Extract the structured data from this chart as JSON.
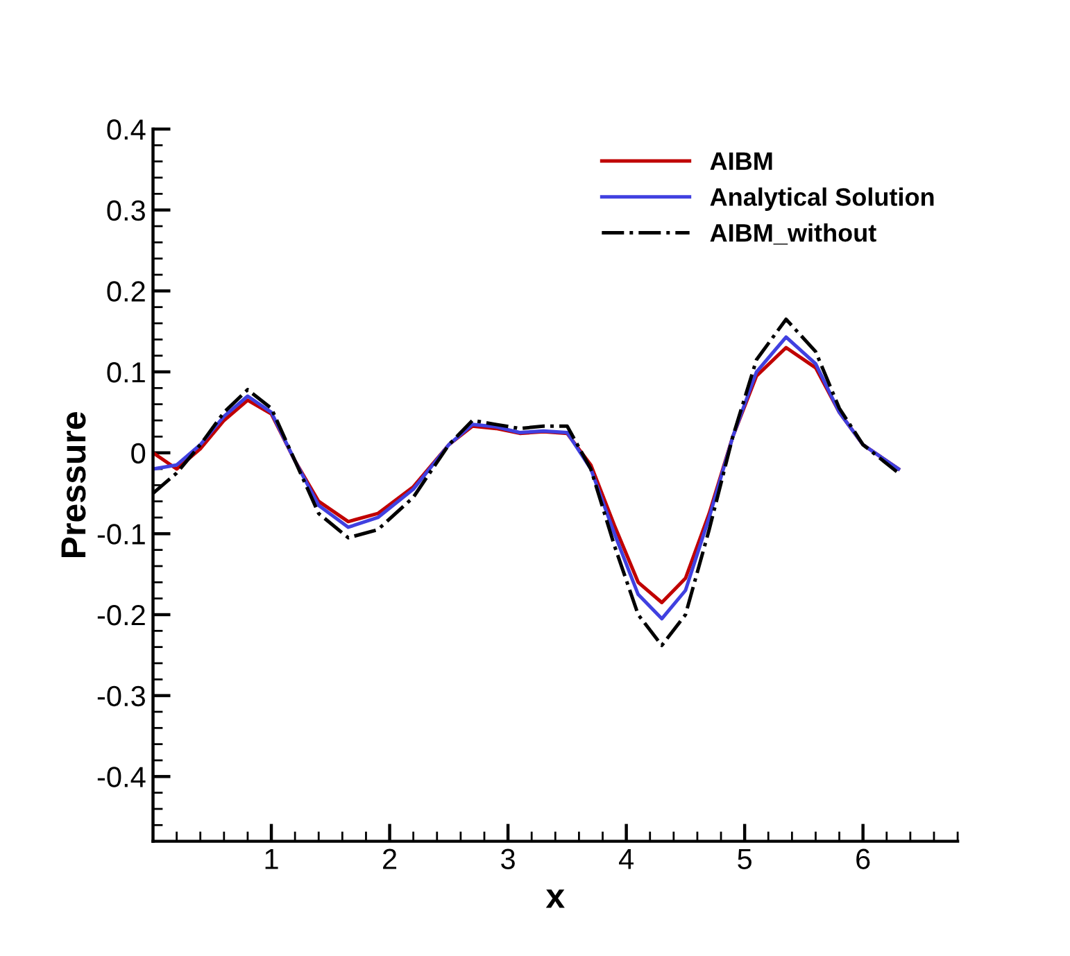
{
  "chart_data": {
    "type": "line",
    "xlabel": "x",
    "ylabel": "Pressure",
    "xlim": [
      0,
      6.8
    ],
    "xticks": [
      1,
      2,
      3,
      4,
      5,
      6
    ],
    "ylim": [
      -0.48,
      0.4
    ],
    "yticks": [
      {
        "value": -0.4,
        "label": "-0.4"
      },
      {
        "value": -0.3,
        "label": "-0.3"
      },
      {
        "value": -0.2,
        "label": "-0.2"
      },
      {
        "value": -0.1,
        "label": "-0.1"
      },
      0,
      0.1,
      0.2,
      0.3,
      0.4
    ],
    "grid": false,
    "legend": "top right",
    "marker": "none",
    "x": [
      0,
      0.2,
      0.4,
      0.6,
      0.8,
      1.0,
      1.2,
      1.4,
      1.65,
      1.9,
      2.2,
      2.5,
      2.7,
      2.9,
      3.1,
      3.3,
      3.5,
      3.7,
      3.9,
      4.1,
      4.3,
      4.5,
      4.7,
      4.9,
      5.1,
      5.35,
      5.6,
      5.8,
      6.0,
      6.3
    ],
    "series": [
      {
        "name": "AIBM",
        "color": "#c00000",
        "line_style": "solid",
        "values": [
          0,
          -0.02,
          0.005,
          0.04,
          0.065,
          0.048,
          -0.01,
          -0.06,
          -0.085,
          -0.075,
          -0.042,
          0.01,
          0.033,
          0.03,
          0.024,
          0.026,
          0.024,
          -0.015,
          -0.09,
          -0.16,
          -0.185,
          -0.155,
          -0.075,
          0.02,
          0.095,
          0.13,
          0.105,
          0.05,
          0.01,
          -0.02
        ]
      },
      {
        "name": "Analytical Solution",
        "color": "#4040e0",
        "line_style": "solid",
        "values": [
          -0.02,
          -0.015,
          0.01,
          0.045,
          0.07,
          0.05,
          -0.01,
          -0.065,
          -0.092,
          -0.08,
          -0.045,
          0.01,
          0.035,
          0.032,
          0.025,
          0.027,
          0.025,
          -0.02,
          -0.1,
          -0.175,
          -0.205,
          -0.17,
          -0.08,
          0.02,
          0.1,
          0.143,
          0.11,
          0.05,
          0.01,
          -0.02
        ]
      },
      {
        "name": "AIBM_without",
        "color": "#000000",
        "line_style": "dashdot",
        "values": [
          -0.05,
          -0.025,
          0.01,
          0.05,
          0.078,
          0.055,
          -0.01,
          -0.075,
          -0.105,
          -0.095,
          -0.055,
          0.01,
          0.04,
          0.035,
          0.03,
          0.033,
          0.033,
          -0.02,
          -0.115,
          -0.2,
          -0.238,
          -0.2,
          -0.095,
          0.02,
          0.115,
          0.165,
          0.125,
          0.055,
          0.01,
          -0.025
        ]
      }
    ]
  }
}
